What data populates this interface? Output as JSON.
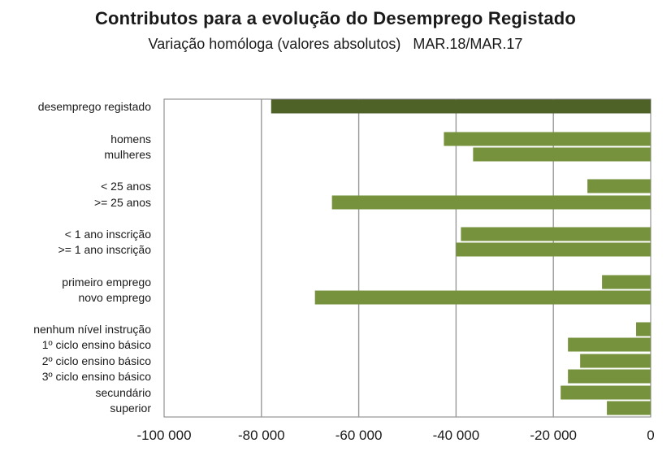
{
  "chart_data": {
    "type": "bar",
    "orientation": "horizontal",
    "title": "Contributos para a evolução do Desemprego Registado",
    "subtitle": "Variação homóloga (valores absolutos)   MAR.18/MAR.17",
    "xlim": [
      -100000,
      0
    ],
    "x_ticks": [
      -100000,
      -80000,
      -60000,
      -40000,
      -20000,
      0
    ],
    "x_tick_labels": [
      "-100 000",
      "-80 000",
      "-60 000",
      "-40 000",
      "-20 000",
      "0"
    ],
    "grid": "vertical",
    "colors": {
      "total": "#4e6228",
      "category": "#76923c",
      "grid": "#999999",
      "axis": "#7f7f7f"
    },
    "categories": [
      "desemprego registado",
      "homens",
      "mulheres",
      "< 25 anos",
      ">= 25 anos",
      "< 1 ano inscrição",
      ">= 1 ano inscrição",
      "primeiro emprego",
      "novo emprego",
      "nenhum nível instrução",
      "1º ciclo ensino básico",
      "2º ciclo ensino básico",
      "3º ciclo ensino básico",
      "secundário",
      "superior"
    ],
    "values": [
      -78000,
      -42500,
      -36500,
      -13000,
      -65500,
      -39000,
      -40000,
      -10000,
      -69000,
      -3000,
      -17000,
      -14500,
      -17000,
      -18500,
      -9000
    ]
  }
}
